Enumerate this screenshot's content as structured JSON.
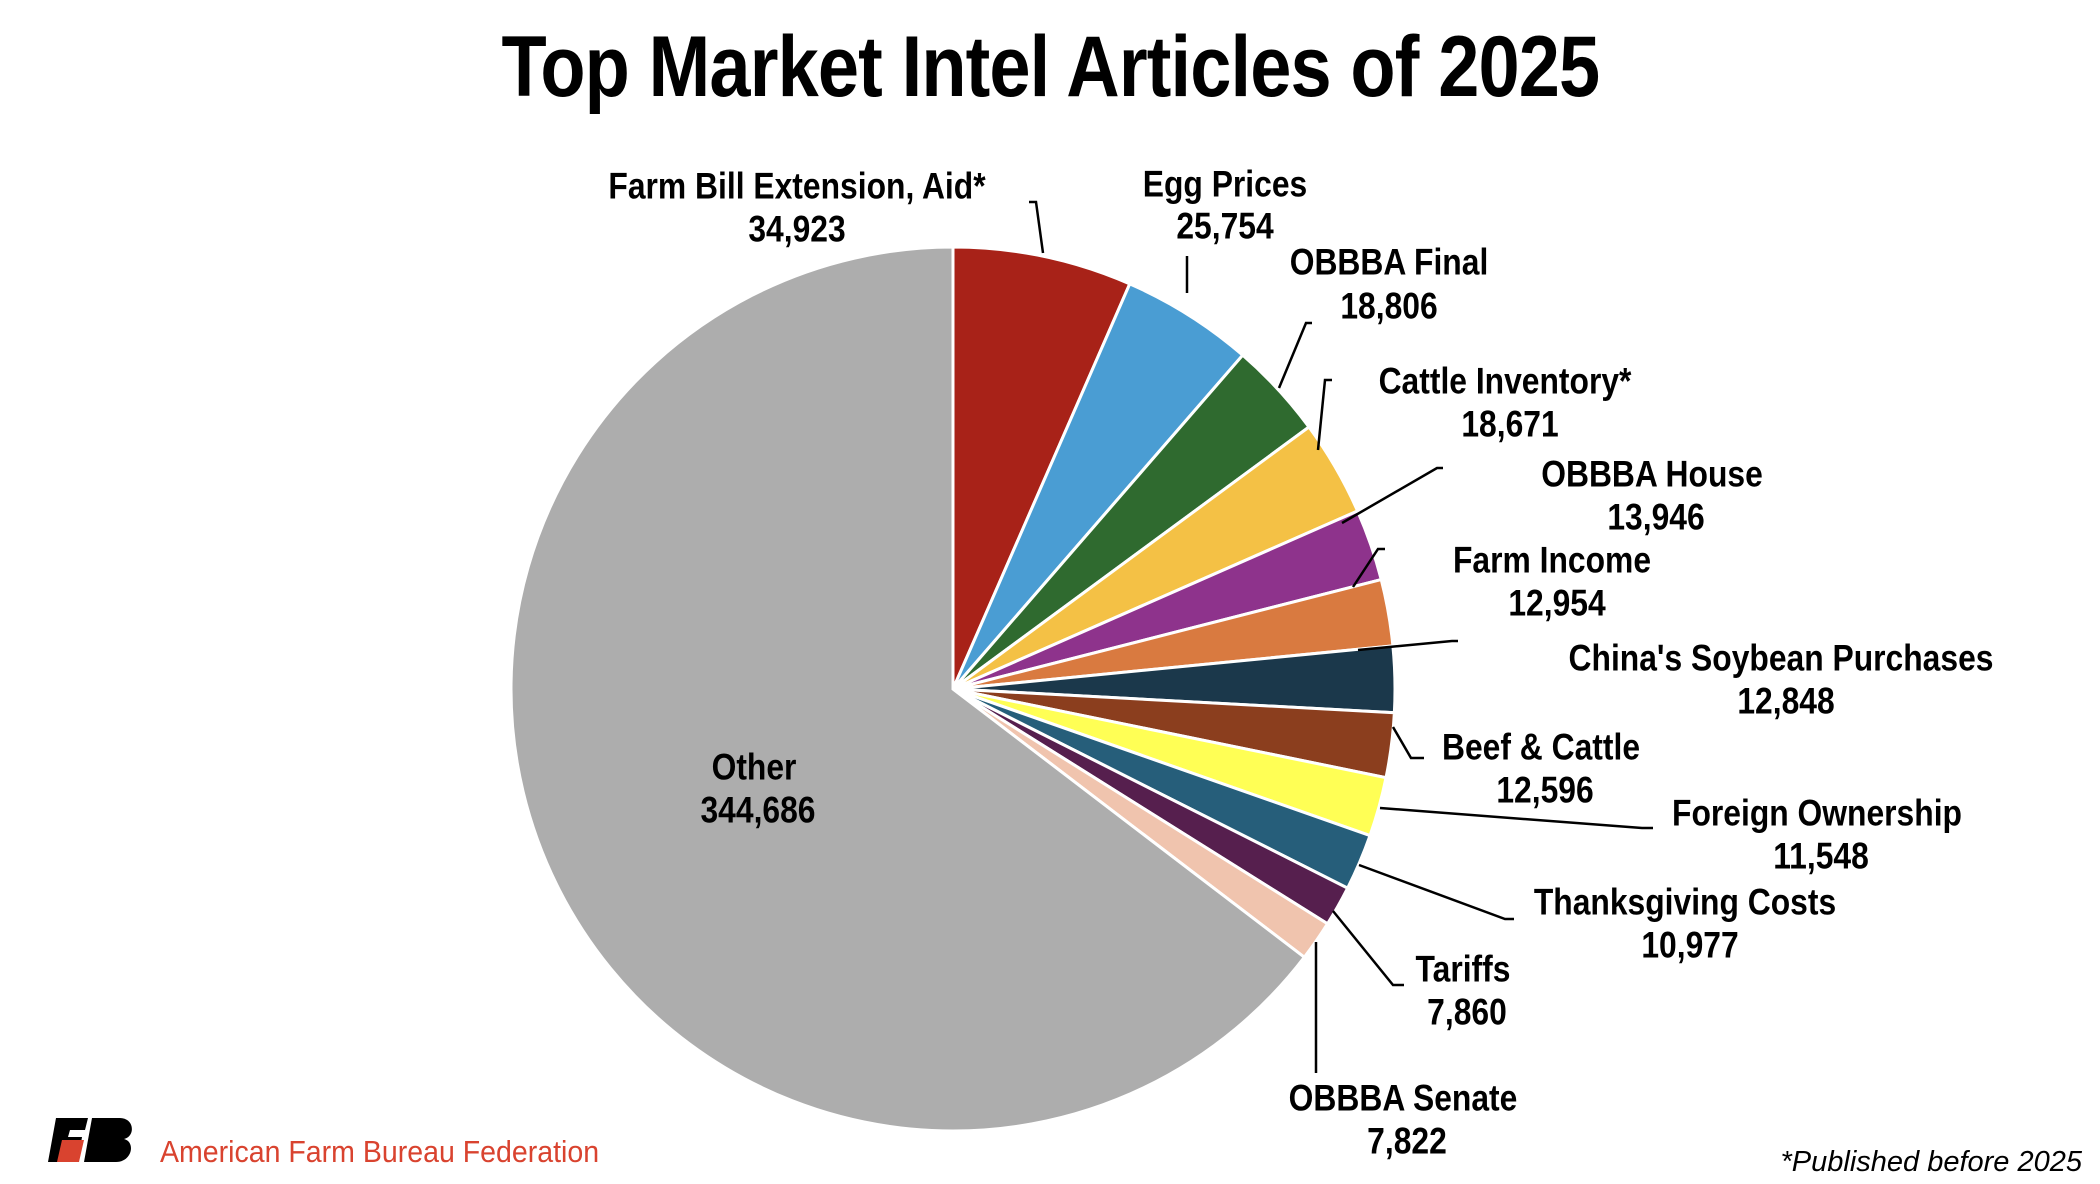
{
  "chart_data": {
    "type": "pie",
    "title": "Top Market Intel Articles of 2025",
    "start_angle": "12 o'clock",
    "direction": "clockwise",
    "slices": [
      {
        "label": "Farm Bill Extension, Aid*",
        "value": 34923,
        "value_text": "34,923",
        "color": "#a82218"
      },
      {
        "label": "Egg Prices",
        "value": 25754,
        "value_text": "25,754",
        "color": "#4a9dd3"
      },
      {
        "label": "OBBBA Final",
        "value": 18806,
        "value_text": "18,806",
        "color": "#2f6a2f"
      },
      {
        "label": "Cattle Inventory*",
        "value": 18671,
        "value_text": "18,671",
        "color": "#f4c145"
      },
      {
        "label": "OBBBA House",
        "value": 13946,
        "value_text": "13,946",
        "color": "#8e338c"
      },
      {
        "label": "Farm Income",
        "value": 12954,
        "value_text": "12,954",
        "color": "#d97a40"
      },
      {
        "label": "China's Soybean Purchases",
        "value": 12848,
        "value_text": "12,848",
        "color": "#1b384b"
      },
      {
        "label": "Beef & Cattle",
        "value": 12596,
        "value_text": "12,596",
        "color": "#8b3e1e"
      },
      {
        "label": "Foreign Ownership",
        "value": 11548,
        "value_text": "11,548",
        "color": "#ffff55"
      },
      {
        "label": "Thanksgiving Costs",
        "value": 10977,
        "value_text": "10,977",
        "color": "#265e7a"
      },
      {
        "label": "Tariffs",
        "value": 7860,
        "value_text": "7,860",
        "color": "#561f4e"
      },
      {
        "label": "OBBBA Senate",
        "value": 7822,
        "value_text": "7,822",
        "color": "#f0c4ae"
      },
      {
        "label": "Other",
        "value": 344686,
        "value_text": "344,686",
        "color": "#adadad"
      }
    ]
  },
  "footnote": "*Published before 2025",
  "organization": "American Farm Bureau Federation",
  "logo_text": "FB",
  "brand_color": "#d9432f"
}
